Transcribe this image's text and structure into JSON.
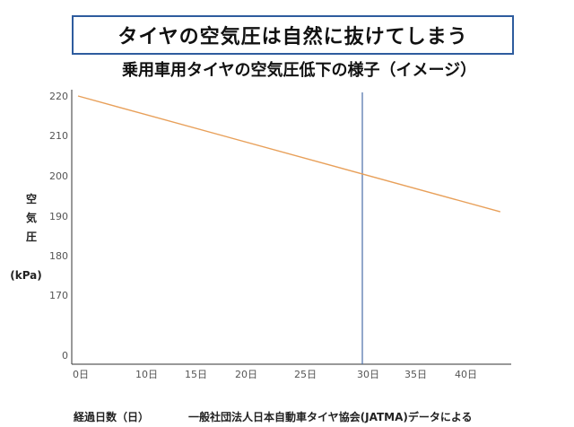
{
  "header": {
    "title": "タイヤの空気圧は自然に抜けてしまう"
  },
  "chart_data": {
    "type": "line",
    "title": "乗用車用タイヤの空気圧低下の様子（イメージ）",
    "ylabel": "空\n気\n圧",
    "yunit": "(kPa)",
    "xlabel": "経過日数（日）",
    "source": "一般社団法人日本自動車タイヤ協会(JATMA)データによる",
    "x_ticks": [
      {
        "label": "0日",
        "value": 0
      },
      {
        "label": "10日",
        "value": 10
      },
      {
        "label": "15日",
        "value": 15
      },
      {
        "label": "20日",
        "value": 20
      },
      {
        "label": "25日",
        "value": 25
      },
      {
        "label": "30日",
        "value": 30
      },
      {
        "label": "35日",
        "value": 35
      },
      {
        "label": "40日",
        "value": 40
      }
    ],
    "y_ticks": [
      {
        "label": "220",
        "value": 220
      },
      {
        "label": "210",
        "value": 210
      },
      {
        "label": "200",
        "value": 200
      },
      {
        "label": "190",
        "value": 190
      },
      {
        "label": "180",
        "value": 180
      },
      {
        "label": "170",
        "value": 170
      },
      {
        "label": "0",
        "value": 0
      }
    ],
    "series": [
      {
        "points": [
          {
            "x": 0,
            "y": 220
          },
          {
            "x": 44,
            "y": 191
          }
        ],
        "color": "#e8a05a"
      }
    ],
    "marker_line": {
      "x": 30,
      "color": "#4a6ea8"
    },
    "grid": false
  }
}
